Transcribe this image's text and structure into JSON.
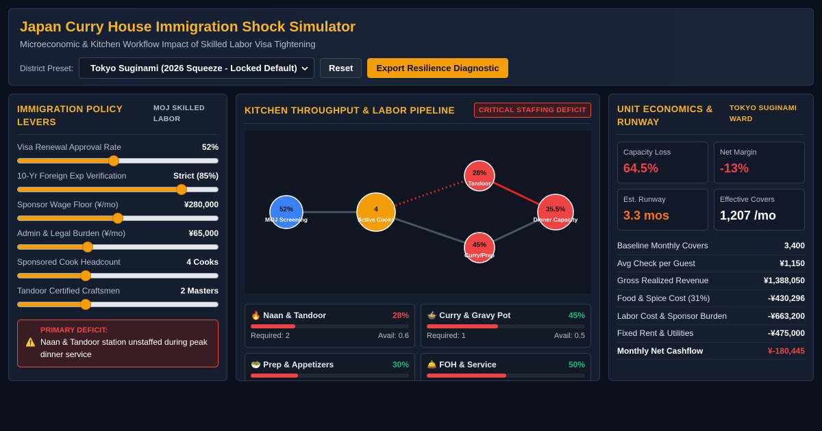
{
  "header": {
    "title": "Japan Curry House Immigration Shock Simulator",
    "subtitle": "Microeconomic & Kitchen Workflow Impact of Skilled Labor Visa Tightening",
    "preset_label": "District Preset:",
    "preset_value": "Tokyo Suginami (2026 Squeeze - Locked Default)",
    "reset_label": "Reset",
    "export_label": "Export Resilience Diagnostic"
  },
  "levers_panel": {
    "title": "Immigration Policy Levers",
    "tag": "MOJ SKILLED LABOR",
    "levers": [
      {
        "name": "Visa Renewal Approval Rate",
        "value": "52%",
        "level": 0.48
      },
      {
        "name": "10-Yr Foreign Exp Verification",
        "value": "Strict (85%)",
        "level": 0.82
      },
      {
        "name": "Sponsor Wage Floor (¥/mo)",
        "value": "¥280,000",
        "level": 0.5
      },
      {
        "name": "Admin & Legal Burden (¥/mo)",
        "value": "¥65,000",
        "level": 0.35
      },
      {
        "name": "Sponsored Cook Headcount",
        "value": "4 Cooks",
        "level": 0.34
      },
      {
        "name": "Tandoor Certified Craftsmen",
        "value": "2 Masters",
        "level": 0.34
      }
    ],
    "deficit_title": "PRIMARY DEFICIT:",
    "deficit_text": "Naan & Tandoor station unstaffed during peak dinner service"
  },
  "pipeline_panel": {
    "title": "Kitchen Throughput & Labor Pipeline",
    "badge": "CRITICAL STAFFING DEFICIT",
    "nodes": [
      {
        "id": "moj",
        "value": "52%",
        "label": "MOJ Screening",
        "color": "#3b82f6"
      },
      {
        "id": "cooks",
        "value": "4",
        "label": "Active Cooks",
        "color": "#f59e0b"
      },
      {
        "id": "tandoor",
        "value": "28%",
        "label": "Tandoor",
        "color": "#ef4444"
      },
      {
        "id": "curry",
        "value": "45%",
        "label": "Curry/Prep",
        "color": "#ef4444"
      },
      {
        "id": "dinner",
        "value": "35.5%",
        "label": "Dinner Capacity",
        "color": "#ef4444"
      }
    ],
    "stations": [
      {
        "icon": "🔥",
        "name": "Naan & Tandoor",
        "pct": "28%",
        "pct_color": "#ef4444",
        "fill": 0.28,
        "required": "Required: 2",
        "avail": "Avail: 0.6"
      },
      {
        "icon": "🍲",
        "name": "Curry & Gravy Pot",
        "pct": "45%",
        "pct_color": "#10b981",
        "fill": 0.45,
        "required": "Required: 1",
        "avail": "Avail: 0.5"
      },
      {
        "icon": "🥗",
        "name": "Prep & Appetizers",
        "pct": "30%",
        "pct_color": "#10b981",
        "fill": 0.3,
        "required": "",
        "avail": ""
      },
      {
        "icon": "🛎️",
        "name": "FOH & Service",
        "pct": "50%",
        "pct_color": "#10b981",
        "fill": 0.5,
        "required": "",
        "avail": ""
      }
    ]
  },
  "economics_panel": {
    "title": "Unit Economics & Runway",
    "tag": "TOKYO SUGINAMI WARD",
    "kpis": [
      {
        "label": "Capacity Loss",
        "value": "64.5%",
        "color": "#ef4444"
      },
      {
        "label": "Net Margin",
        "value": "-13%",
        "color": "#ef4444"
      },
      {
        "label": "Est. Runway",
        "value": "3.3 mos",
        "color": "#f97316"
      },
      {
        "label": "Effective Covers",
        "value": "1,207 /mo",
        "color": "#ffffff"
      }
    ],
    "ledger": [
      {
        "name": "Baseline Monthly Covers",
        "value": "3,400",
        "color": "#ffffff"
      },
      {
        "name": "Avg Check per Guest",
        "value": "¥1,150",
        "color": "#ffffff"
      },
      {
        "name": "Gross Realized Revenue",
        "value": "¥1,388,050",
        "color": "#ffffff"
      },
      {
        "name": "Food & Spice Cost (31%)",
        "value": "-¥430,296",
        "color": "#ffffff"
      },
      {
        "name": "Labor Cost & Sponsor Burden",
        "value": "-¥663,200",
        "color": "#ffffff"
      },
      {
        "name": "Fixed Rent & Utilities",
        "value": "-¥475,000",
        "color": "#ffffff"
      },
      {
        "name": "Monthly Net Cashflow",
        "value": "¥-180,445",
        "color": "#ef4444"
      }
    ]
  }
}
